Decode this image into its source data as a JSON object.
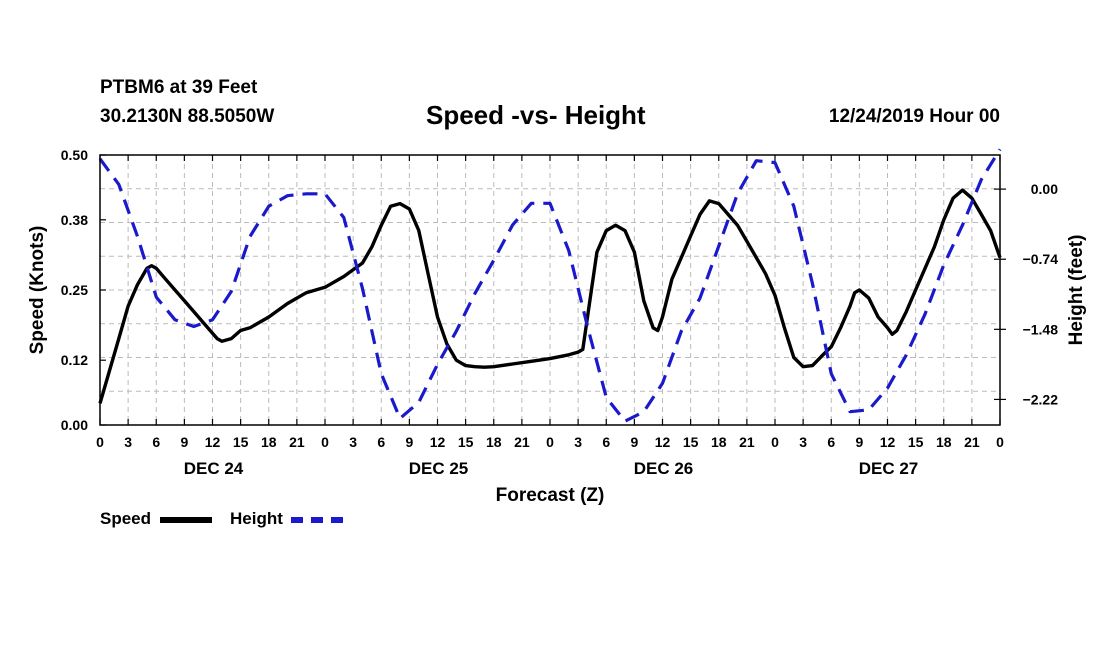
{
  "header": {
    "station": "PTBM6 at 39 Feet",
    "coords": "30.2130N 88.5050W",
    "title": "Speed -vs- Height",
    "stamp": "12/24/2019 Hour 00"
  },
  "legend": {
    "speed_label": "Speed",
    "height_label": "Height"
  },
  "colors": {
    "speed": "#000000",
    "height": "#1a1acc",
    "grid": "#bbbbbb"
  },
  "chart_data": {
    "type": "line",
    "title": "Speed -vs- Height",
    "xlabel": "Forecast (Z)",
    "ylabel": "Speed (Knots)",
    "y2label": "Height (feet)",
    "xlim": [
      0,
      96
    ],
    "ylim": [
      0,
      0.5
    ],
    "y2lim": [
      -2.49,
      0.36
    ],
    "x_tick_step_hours": 3,
    "x_tick_labels": [
      "0",
      "3",
      "6",
      "9",
      "12",
      "15",
      "18",
      "21",
      "0",
      "3",
      "6",
      "9",
      "12",
      "15",
      "18",
      "21",
      "0",
      "3",
      "6",
      "9",
      "12",
      "15",
      "18",
      "21",
      "0",
      "3",
      "6",
      "9",
      "12",
      "15",
      "18",
      "21",
      "0"
    ],
    "day_labels": [
      {
        "label": "DEC 24",
        "hour": 12
      },
      {
        "label": "DEC 25",
        "hour": 36
      },
      {
        "label": "DEC 26",
        "hour": 60
      },
      {
        "label": "DEC 27",
        "hour": 84
      }
    ],
    "y_ticks": [
      0.0,
      0.12,
      0.25,
      0.38,
      0.5
    ],
    "y_tick_labels": [
      "0.00",
      "0.12",
      "0.25",
      "0.38",
      "0.50"
    ],
    "y2_ticks": [
      0.0,
      -0.74,
      -1.48,
      -2.22
    ],
    "y2_tick_labels": [
      "0.00",
      "−0.74",
      "−1.48",
      "−2.22"
    ],
    "grid": true,
    "series": [
      {
        "name": "Speed",
        "axis": "left",
        "style": "solid",
        "x": [
          0,
          1,
          2,
          3,
          4,
          5,
          5.5,
          6,
          7,
          8,
          9,
          10,
          11,
          12,
          12.5,
          13,
          14,
          15,
          16,
          18,
          20,
          22,
          24,
          26,
          28,
          29,
          30,
          31,
          32,
          33,
          34,
          35,
          36,
          37,
          38,
          39,
          40,
          41,
          42,
          44,
          46,
          48,
          50,
          51,
          51.5,
          52,
          53,
          54,
          55,
          56,
          57,
          58,
          59,
          59.5,
          60,
          61,
          62,
          63,
          64,
          65,
          66,
          67,
          68,
          69,
          70,
          71,
          72,
          73,
          74,
          75,
          76,
          77,
          78,
          79,
          80,
          80.5,
          81,
          82,
          83,
          84,
          84.5,
          85,
          86,
          87,
          88,
          89,
          90,
          91,
          92,
          93,
          94,
          95,
          96
        ],
        "values": [
          0.04,
          0.1,
          0.16,
          0.22,
          0.26,
          0.29,
          0.295,
          0.29,
          0.27,
          0.25,
          0.23,
          0.21,
          0.19,
          0.17,
          0.16,
          0.155,
          0.16,
          0.175,
          0.18,
          0.2,
          0.225,
          0.245,
          0.255,
          0.275,
          0.3,
          0.33,
          0.37,
          0.405,
          0.41,
          0.4,
          0.36,
          0.28,
          0.2,
          0.15,
          0.12,
          0.11,
          0.108,
          0.107,
          0.108,
          0.113,
          0.118,
          0.123,
          0.13,
          0.135,
          0.14,
          0.2,
          0.32,
          0.36,
          0.37,
          0.36,
          0.32,
          0.23,
          0.18,
          0.175,
          0.2,
          0.27,
          0.31,
          0.35,
          0.39,
          0.415,
          0.41,
          0.39,
          0.37,
          0.34,
          0.31,
          0.28,
          0.24,
          0.18,
          0.125,
          0.108,
          0.11,
          0.128,
          0.145,
          0.18,
          0.22,
          0.245,
          0.25,
          0.235,
          0.2,
          0.18,
          0.168,
          0.175,
          0.21,
          0.25,
          0.29,
          0.33,
          0.38,
          0.42,
          0.435,
          0.42,
          0.39,
          0.36,
          0.31
        ]
      },
      {
        "name": "Height",
        "axis": "right",
        "style": "dashed",
        "x": [
          0,
          2,
          4,
          6,
          8,
          10,
          12,
          14,
          16,
          18,
          20,
          22,
          24,
          26,
          28,
          30,
          32,
          34,
          36,
          38,
          40,
          42,
          44,
          46,
          48,
          50,
          52,
          54,
          56,
          58,
          60,
          62,
          64,
          66,
          68,
          70,
          72,
          74,
          76,
          78,
          80,
          82,
          84,
          86,
          88,
          90,
          92,
          94,
          96
        ],
        "values": [
          0.32,
          0.05,
          -0.5,
          -1.14,
          -1.38,
          -1.45,
          -1.38,
          -1.08,
          -0.5,
          -0.18,
          -0.07,
          -0.05,
          -0.05,
          -0.3,
          -1.05,
          -1.95,
          -2.42,
          -2.25,
          -1.85,
          -1.5,
          -1.1,
          -0.75,
          -0.38,
          -0.15,
          -0.15,
          -0.65,
          -1.45,
          -2.2,
          -2.45,
          -2.35,
          -2.05,
          -1.5,
          -1.15,
          -0.6,
          -0.05,
          0.3,
          0.28,
          -0.18,
          -1.0,
          -1.95,
          -2.35,
          -2.33,
          -2.1,
          -1.75,
          -1.32,
          -0.8,
          -0.38,
          0.1,
          0.42
        ]
      }
    ]
  }
}
